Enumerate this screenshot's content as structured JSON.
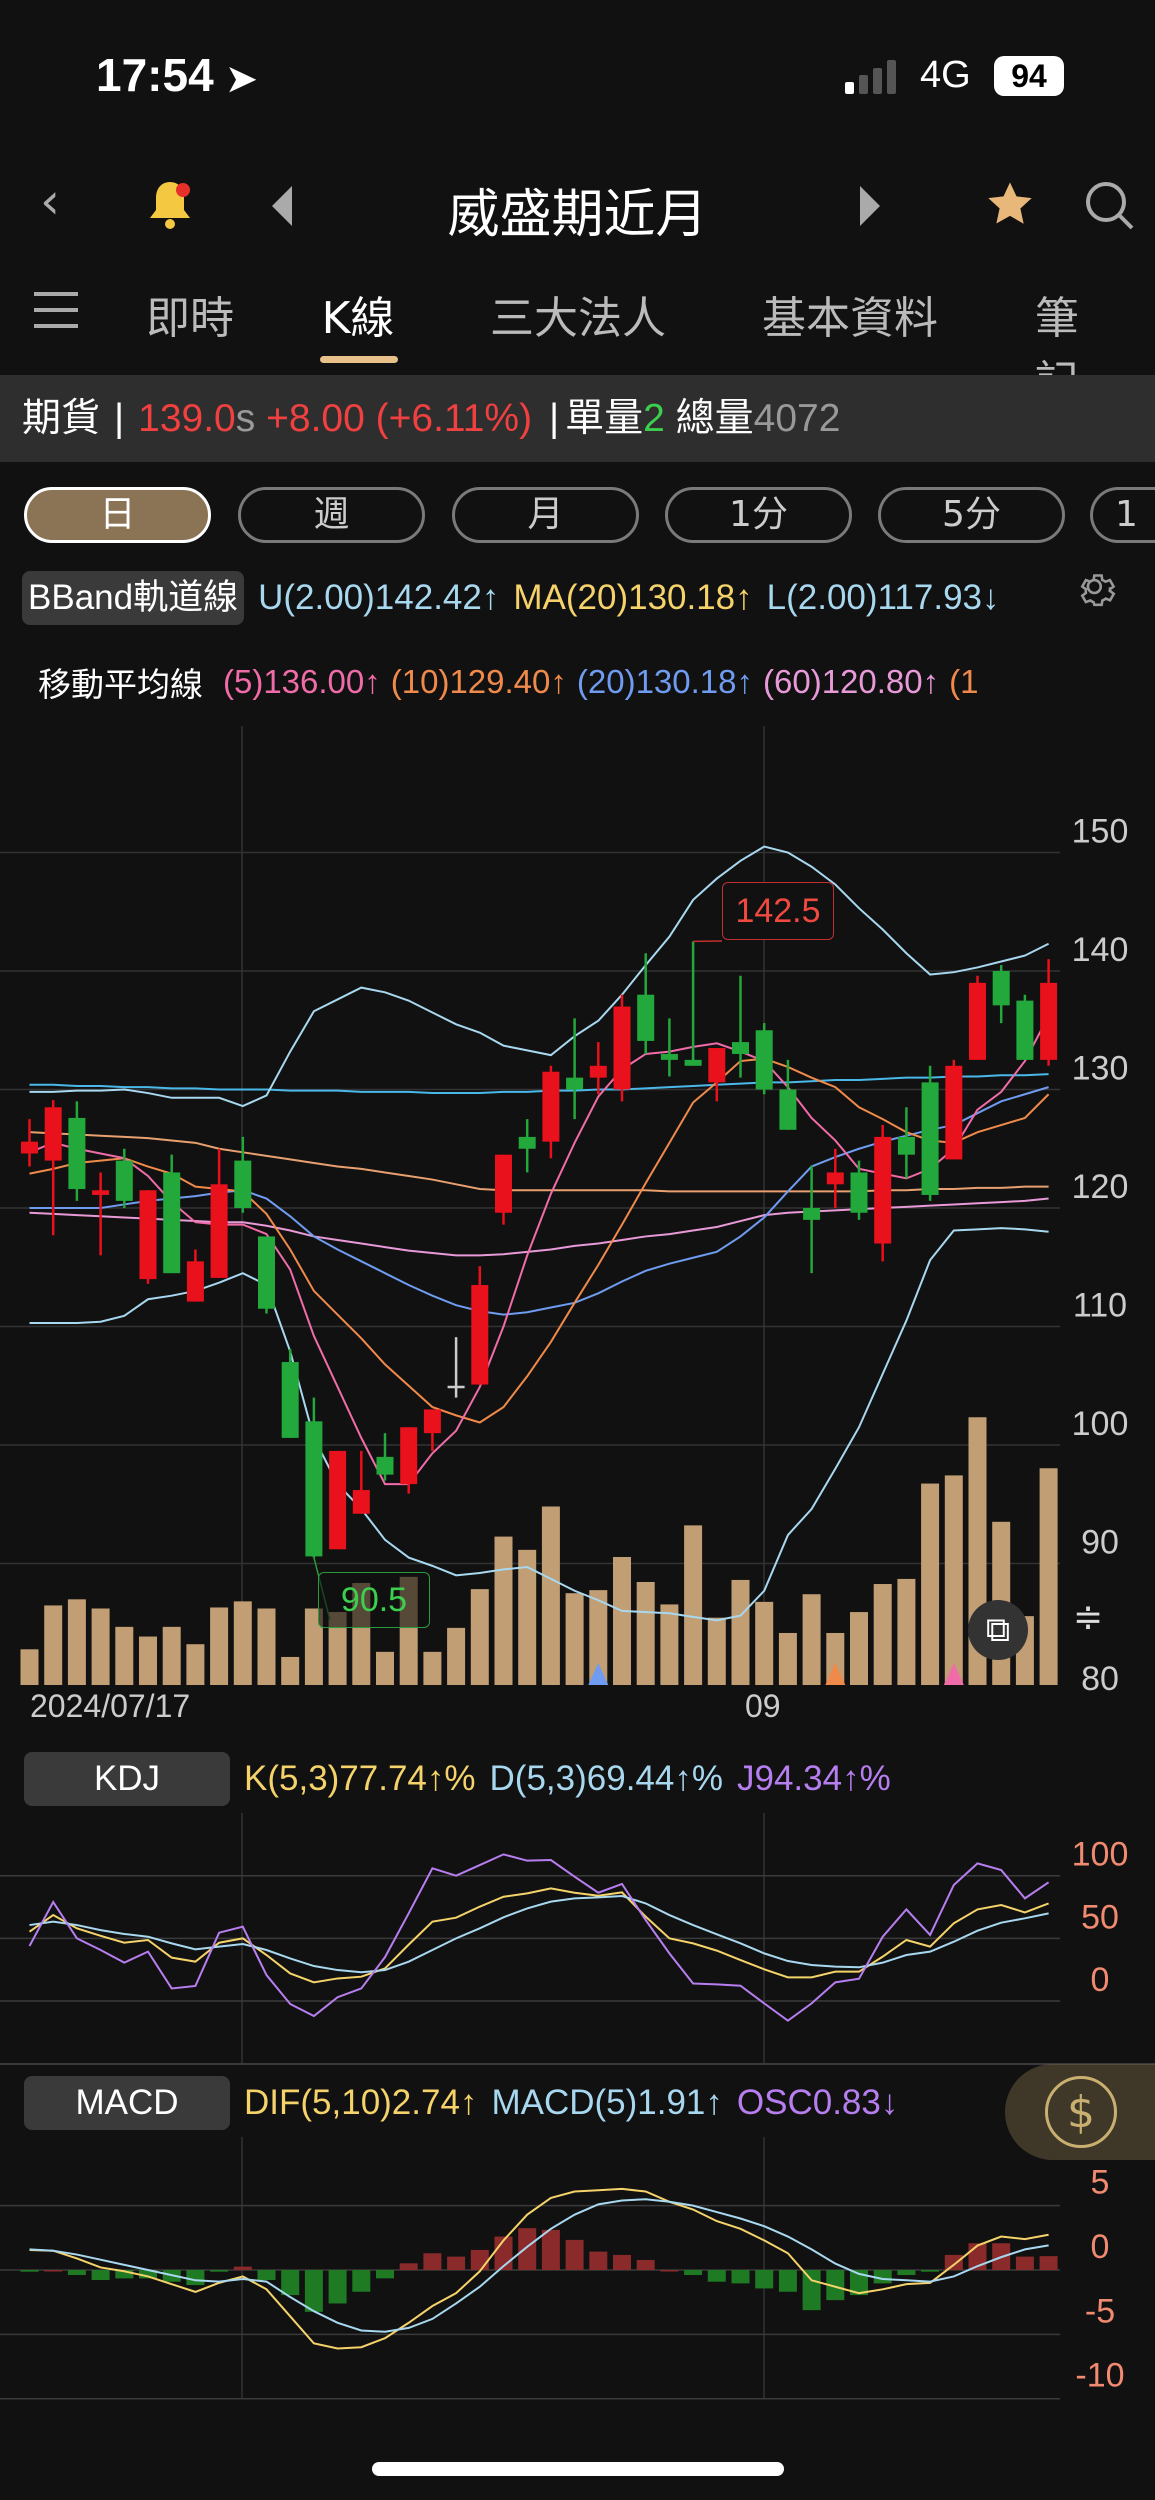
{
  "status_bar": {
    "time": "17:54",
    "network": "4G",
    "battery": "94"
  },
  "nav": {
    "title": "威盛期近月"
  },
  "tabs": [
    {
      "label": "即時"
    },
    {
      "label": "K線",
      "active": true
    },
    {
      "label": "三大法人"
    },
    {
      "label": "基本資料"
    },
    {
      "label": "筆記"
    }
  ],
  "quote": {
    "type_label": "期貨",
    "sep": "|",
    "price": "139.0",
    "price_suffix": "s",
    "change": "+8.00",
    "change_pct": "(+6.11%)",
    "sep2": "|",
    "single_vol_label": "單量",
    "single_vol": "2",
    "total_vol_label": "總量",
    "total_vol": "4072"
  },
  "periods": [
    {
      "label": "日",
      "selected": true
    },
    {
      "label": "週"
    },
    {
      "label": "月"
    },
    {
      "label": "1分"
    },
    {
      "label": "5分"
    },
    {
      "label": "1"
    }
  ],
  "bband": {
    "label": "BBand軌道線",
    "upper": "U(2.00)142.42↑",
    "mid": "MA(20)130.18↑",
    "lower": "L(2.00)117.93↓"
  },
  "ma": {
    "label": "移動平均線",
    "ma5": "(5)136.00↑",
    "ma10": "(10)129.40↑",
    "ma20": "(20)130.18↑",
    "ma60": "(60)120.80↑",
    "ma_more": "(1"
  },
  "kdj": {
    "label": "KDJ",
    "k": "K(5,3)77.74↑%",
    "d": "D(5,3)69.44↑%",
    "j": "J94.34↑%"
  },
  "macd": {
    "label": "MACD",
    "dif": "DIF(5,10)2.74↑",
    "macd": "MACD(5)1.91↑",
    "osc": "OSC0.83↓"
  },
  "colors": {
    "up": "#e8111c",
    "down": "#23a83c",
    "volume": "#c19e74",
    "bb": "#a8d8f0",
    "ma5": "#f06ca8",
    "ma10": "#f08a4a",
    "ma20": "#6f9cf0",
    "ma60": "#e89ad8",
    "ma_long": "#e8a070",
    "ma_cyan": "#4ab8e8",
    "k": "#f5d36a",
    "d": "#a8d8f0",
    "j": "#b77ef0",
    "axis_sub": "#f08a70"
  },
  "chart_data": [
    {
      "type": "candlestick",
      "x_labels": [
        "2024/07/17",
        "09"
      ],
      "y_ticks": [
        "150",
        "140",
        "130",
        "120",
        "110",
        "100",
        "90",
        "80"
      ],
      "ylim": [
        80,
        155
      ],
      "annotations": {
        "high": "142.5",
        "low": "90.5"
      },
      "ohlc": [
        [
          124.6,
          127.5,
          123.5,
          125.6
        ],
        [
          124,
          129.1,
          117.7,
          128.5
        ],
        [
          127.6,
          129,
          120.6,
          121.6
        ],
        [
          121.1,
          123,
          116,
          121.5
        ],
        [
          124,
          125,
          120,
          120.6
        ],
        [
          114,
          121.5,
          113.6,
          121.5
        ],
        [
          123,
          124.5,
          114.5,
          114.5
        ],
        [
          112.1,
          116.5,
          112.1,
          115.5
        ],
        [
          114.1,
          125,
          114.1,
          122
        ],
        [
          124,
          126,
          119.6,
          120
        ],
        [
          117.6,
          117.6,
          111.1,
          111.5
        ],
        [
          107,
          108.1,
          100.6,
          100.6
        ],
        [
          102,
          104,
          90.5,
          90.6
        ],
        [
          91.2,
          99.5,
          91.2,
          99.5
        ],
        [
          94.2,
          99.5,
          94.2,
          96.2
        ],
        [
          99,
          101,
          97,
          97.5
        ],
        [
          96.7,
          101.5,
          95.9,
          101.5
        ],
        [
          101,
          103,
          99.5,
          103
        ],
        [
          105,
          109.1,
          104,
          105
        ],
        [
          105.1,
          115.1,
          105.1,
          113.5
        ],
        [
          119.6,
          124.5,
          118.6,
          124.5
        ],
        [
          126,
          127.5,
          123,
          125
        ],
        [
          125.6,
          132,
          124.2,
          131.5
        ],
        [
          131,
          136,
          127.5,
          130
        ],
        [
          131,
          134,
          129.6,
          132
        ],
        [
          130,
          138,
          129,
          137
        ],
        [
          138,
          141.5,
          133,
          134.1
        ],
        [
          133,
          136,
          131.1,
          132.5
        ],
        [
          132.5,
          142.5,
          132,
          132
        ],
        [
          130.6,
          133.5,
          129,
          133.5
        ],
        [
          134,
          139.6,
          131,
          133
        ],
        [
          135,
          135.6,
          129.6,
          130
        ],
        [
          130,
          132.5,
          126.6,
          126.6
        ],
        [
          120,
          123.6,
          114.5,
          119
        ],
        [
          122,
          125,
          120,
          123
        ],
        [
          123,
          124,
          119,
          119.6
        ],
        [
          117,
          127,
          115.5,
          126
        ],
        [
          126,
          128.5,
          122.5,
          124.5
        ],
        [
          130.6,
          132,
          120.6,
          121.1
        ],
        [
          124.1,
          132.5,
          124.1,
          132
        ],
        [
          132.5,
          139.6,
          132.5,
          139
        ],
        [
          140,
          140.5,
          135.6,
          137.1
        ],
        [
          137.5,
          138,
          132.5,
          132.5
        ],
        [
          132.5,
          141,
          132,
          139
        ]
      ],
      "volume": [
        70,
        156,
        168,
        150,
        114,
        95,
        114,
        80,
        152,
        164,
        150,
        55,
        150,
        143,
        200,
        65,
        212,
        65,
        112,
        188,
        291,
        265,
        350,
        180,
        186,
        251,
        202,
        158,
        313,
        132,
        206,
        163,
        102,
        178,
        102,
        143,
        198,
        208,
        395,
        411,
        525,
        320,
        135,
        425
      ],
      "series": {
        "bb_upper": [
          129.8,
          129.8,
          129.9,
          129.9,
          130,
          129.7,
          129.3,
          129.3,
          129.3,
          128.6,
          129.5,
          133.2,
          136.6,
          137.6,
          138.6,
          138.2,
          137.5,
          136.5,
          135.5,
          134.8,
          133.7,
          133.3,
          132.9,
          134.5,
          135.8,
          138,
          140.5,
          142.9,
          146,
          147.8,
          149.3,
          150.5,
          150,
          148.8,
          147.3,
          145.3,
          143.5,
          141.5,
          139.7,
          139.9,
          140.3,
          140.8,
          141.3,
          142.3
        ],
        "bb_lower": [
          110.3,
          110.3,
          110.3,
          110.4,
          110.9,
          112.3,
          112.6,
          113,
          113.7,
          114.5,
          113.5,
          107.9,
          100.6,
          96.7,
          94.6,
          92,
          90.5,
          89.8,
          89,
          89.2,
          89.5,
          89.7,
          88.7,
          87.7,
          86.9,
          86,
          85.9,
          85.8,
          85.5,
          85.2,
          85.6,
          87.7,
          92.4,
          94.6,
          98,
          101.5,
          106,
          110.5,
          115.6,
          118.1,
          118.2,
          118.3,
          118.2,
          118
        ],
        "ma5": [
          124.7,
          125.5,
          125,
          124.6,
          124.2,
          122.7,
          120.5,
          118.8,
          118.6,
          118.6,
          117.8,
          114.8,
          109.2,
          104.9,
          100.6,
          96.7,
          96.7,
          99.3,
          101.2,
          104.9,
          110,
          116,
          121.2,
          125.5,
          129.4,
          131.7,
          133,
          133.2,
          133.6,
          133.9,
          133.2,
          132.4,
          130.2,
          127.6,
          125.7,
          123.3,
          122.9,
          122.5,
          123.3,
          125,
          128.3,
          129.8,
          132.4,
          136.2
        ],
        "ma10": [
          122.9,
          123.3,
          123.8,
          124,
          124.2,
          123.5,
          122.9,
          121.8,
          121.6,
          121.4,
          119.5,
          116.5,
          113,
          111,
          109,
          106.8,
          105,
          103.2,
          102.5,
          101.9,
          103.2,
          105.8,
          108.7,
          112,
          115.2,
          118.6,
          122.1,
          125.5,
          128.9,
          130.6,
          132.4,
          132.6,
          131.9,
          131,
          130.2,
          128.5,
          127.5,
          126.4,
          125.7,
          125.5,
          126.4,
          127,
          127.6,
          129.6
        ],
        "ma20": [
          120,
          120,
          120,
          120,
          120.3,
          120.6,
          120.8,
          121,
          121.3,
          121.5,
          120.8,
          119.3,
          117.6,
          116.5,
          115.5,
          114.5,
          113.5,
          112.6,
          111.8,
          111.3,
          111,
          111.2,
          111.6,
          112,
          112.8,
          113.8,
          114.7,
          115.3,
          115.8,
          116.3,
          117.6,
          119.2,
          121.4,
          123.5,
          124.3,
          125,
          125.6,
          126.1,
          126.6,
          127,
          128,
          129,
          129.6,
          130.2
        ],
        "ma60": [
          119.6,
          119.5,
          119.4,
          119.3,
          119.2,
          119.1,
          119,
          118.9,
          118.8,
          118.8,
          118.5,
          118.1,
          117.6,
          117.3,
          117,
          116.7,
          116.4,
          116.2,
          116,
          116,
          116.1,
          116.3,
          116.5,
          116.8,
          117,
          117.3,
          117.6,
          117.8,
          118.1,
          118.4,
          118.9,
          119.4,
          119.6,
          119.7,
          119.8,
          119.9,
          120,
          120.1,
          120.2,
          120.3,
          120.4,
          120.5,
          120.6,
          120.8
        ],
        "ma_long": [
          126.4,
          126.3,
          126.2,
          126.1,
          126,
          125.9,
          125.7,
          125.5,
          125,
          124.7,
          124.4,
          124.1,
          123.8,
          123.5,
          123.3,
          123,
          122.7,
          122.4,
          122,
          121.6,
          121.5,
          121.5,
          121.5,
          121.5,
          121.5,
          121.5,
          121.5,
          121.4,
          121.4,
          121.4,
          121.4,
          121.4,
          121.4,
          121.4,
          121.4,
          121.4,
          121.5,
          121.5,
          121.6,
          121.6,
          121.7,
          121.7,
          121.8,
          121.8
        ],
        "ma_cyan": [
          130.4,
          130.4,
          130.3,
          130.3,
          130.2,
          130.2,
          130.1,
          130.1,
          130,
          130,
          130,
          129.9,
          129.9,
          129.9,
          129.8,
          129.8,
          129.8,
          129.7,
          129.7,
          129.7,
          129.8,
          129.8,
          129.9,
          129.9,
          130,
          130,
          130.1,
          130.2,
          130.3,
          130.4,
          130.5,
          130.6,
          130.6,
          130.7,
          130.8,
          130.8,
          130.9,
          131,
          131,
          131.1,
          131.1,
          131.2,
          131.2,
          131.3
        ]
      },
      "markers": [
        {
          "index": 24,
          "color": "#6f9cf0"
        },
        {
          "index": 34,
          "color": "#f08a4a"
        },
        {
          "index": 39,
          "color": "#f06ca8"
        }
      ]
    },
    {
      "type": "line",
      "title": "KDJ",
      "y_ticks": [
        "100",
        "50",
        "0"
      ],
      "ylim": [
        -40,
        140
      ],
      "series": [
        {
          "name": "K",
          "values": [
            55.3,
            68.6,
            58,
            52,
            46.5,
            48.7,
            34.6,
            31.4,
            46.5,
            50,
            36.7,
            22,
            14.9,
            18,
            19.4,
            26,
            45,
            63.3,
            66.5,
            75.3,
            83.2,
            85.9,
            89.9,
            86.4,
            84,
            86.7,
            67.3,
            50,
            46,
            40.2,
            32.7,
            25.3,
            18.9,
            18.9,
            23.4,
            23.4,
            35.4,
            48.7,
            43.4,
            62,
            73.1,
            76.6,
            70.7,
            77.9
          ]
        },
        {
          "name": "D",
          "values": [
            60.6,
            63.3,
            60.6,
            56.6,
            53.5,
            51.3,
            46,
            41.2,
            43.4,
            45.5,
            40.7,
            34,
            27.9,
            24.7,
            22.9,
            24.7,
            31.4,
            40.7,
            50,
            58,
            66.8,
            73.9,
            79.3,
            81.9,
            82.7,
            83.8,
            77.9,
            68.6,
            60.6,
            53.2,
            46,
            38,
            31.9,
            28.7,
            27.4,
            26.9,
            30.6,
            36.7,
            39.4,
            47.3,
            56.1,
            62.5,
            66,
            69.9
          ]
        },
        {
          "name": "J",
          "values": [
            43.9,
            79,
            50,
            40.7,
            30.6,
            39.4,
            10,
            12,
            54.5,
            59.3,
            20.7,
            -2.4,
            -12,
            3,
            10,
            35,
            70,
            105.9,
            100,
            108.5,
            117,
            112,
            112.5,
            99.2,
            86.4,
            93.4,
            64.6,
            38,
            14,
            13.3,
            12.2,
            -1.9,
            -15.7,
            -1.9,
            14.9,
            17.8,
            51.3,
            73.1,
            52.7,
            92.6,
            109.8,
            104.5,
            81.9,
            94.7
          ]
        }
      ]
    },
    {
      "type": "line+bar",
      "title": "MACD",
      "y_ticks": [
        "5",
        "0",
        "-5",
        "-10"
      ],
      "ylim": [
        -12,
        9
      ],
      "series": [
        {
          "name": "DIF",
          "values": [
            1.55,
            1.5,
            0.9,
            0.2,
            -0.1,
            -0.5,
            -1.1,
            -1.7,
            -1,
            -0.5,
            -1.5,
            -3.6,
            -5.7,
            -6.1,
            -6,
            -5.3,
            -4.1,
            -2.8,
            -1.8,
            -0.1,
            2.3,
            4.3,
            5.6,
            6.1,
            6.2,
            6.3,
            6.1,
            5.3,
            4.7,
            3.8,
            3.2,
            2.3,
            1.3,
            -0.8,
            -1.3,
            -1.8,
            -1.5,
            -1.1,
            -1,
            0.4,
            1.9,
            2.6,
            2.4,
            2.74
          ]
        },
        {
          "name": "MACD",
          "values": [
            1.6,
            1.5,
            1.2,
            0.8,
            0.4,
            0,
            -0.4,
            -0.8,
            -0.9,
            -0.7,
            -0.9,
            -2.1,
            -3.2,
            -4.1,
            -4.7,
            -4.8,
            -4.5,
            -3.8,
            -2.6,
            -1.3,
            0.3,
            1.8,
            3.2,
            4.3,
            5.1,
            5.4,
            5.5,
            5.3,
            5,
            4.5,
            4,
            3.4,
            2.6,
            1.6,
            0.5,
            -0.3,
            -0.7,
            -0.8,
            -0.9,
            -0.5,
            0.3,
            1,
            1.6,
            1.91
          ]
        },
        {
          "name": "OSC",
          "values": [
            -0.1,
            0,
            -0.3,
            -0.6,
            -0.5,
            -0.5,
            -0.7,
            -0.9,
            -0.1,
            0.2,
            -0.6,
            -1.5,
            -2.5,
            -2,
            -1.3,
            -0.5,
            0.4,
            1,
            0.8,
            1.2,
            2,
            2.5,
            2.4,
            1.8,
            1.1,
            0.9,
            0.6,
            0,
            -0.3,
            -0.7,
            -0.8,
            -1.1,
            -1.3,
            -2.4,
            -1.8,
            -1.5,
            -0.8,
            -0.3,
            -0.1,
            0.9,
            1.6,
            1.6,
            0.8,
            0.83
          ]
        }
      ]
    }
  ]
}
